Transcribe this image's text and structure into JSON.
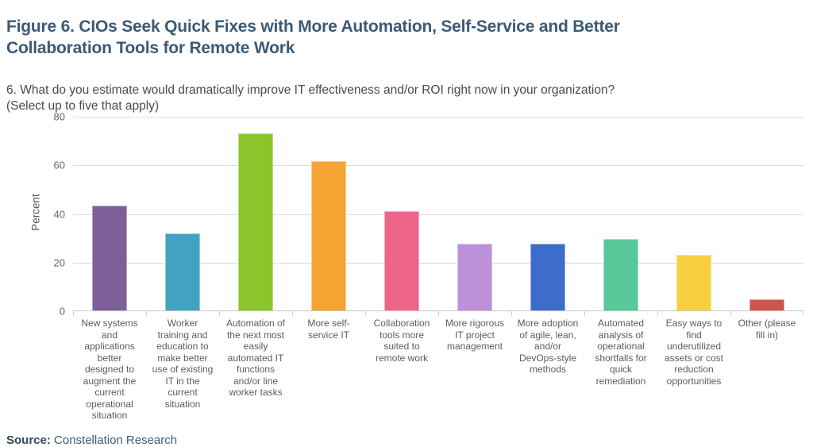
{
  "header": {
    "title": "Figure 6. CIOs Seek Quick Fixes with More Automation, Self-Service and Better\nCollaboration Tools for Remote Work",
    "question": "6. What do you estimate would dramatically improve IT effectiveness and/or ROI right now in your organization?\n(Select up to five that apply)"
  },
  "chart_data": {
    "type": "bar",
    "title": "",
    "xlabel": "",
    "ylabel": "Percent",
    "ylim": [
      0,
      80
    ],
    "yticks": [
      0,
      20,
      40,
      60,
      80
    ],
    "grid": "horizontal",
    "legend_position": "none",
    "categories": [
      "New systems\nand\napplications\nbetter\ndesigned to\naugment the\ncurrent\noperational\nsituation",
      "Worker\ntraining and\neducation to\nmake better\nuse of existing\nIT in the\ncurrent\nsituation",
      "Automation of\nthe next most\neasily\nautomated IT\nfunctions\nand/or line\nworker tasks",
      "More self-\nservice IT",
      "Collaboration\ntools more\nsuited to\nremote work",
      "More rigorous\nIT project\nmanagement",
      "More adoption\nof agile, lean,\nand/or\nDevOps-style\nmethods",
      "Automated\nanalysis of\noperational\nshortfalls for\nquick\nremediation",
      "Easy ways to\nfind\nunderutilized\nassets or cost\nreduction\nopportunities",
      "Other (please\nfill in)"
    ],
    "values": [
      43.2,
      31.8,
      72.7,
      61.4,
      40.9,
      27.3,
      27.3,
      29.5,
      22.7,
      4.5
    ],
    "bar_colors": [
      "#7C6097",
      "#41A2C2",
      "#8CC42B",
      "#F5A433",
      "#ED6588",
      "#BC91D9",
      "#3E6CCB",
      "#58C79A",
      "#F7CF41",
      "#D0534E"
    ]
  },
  "source": {
    "label": "Source:",
    "value": "Constellation Research"
  },
  "colors": {
    "title_text": "#3A5A77",
    "question_text": "#4A4A4A",
    "axis_text": "#666666",
    "y_axis_title_text": "#555555",
    "category_text": "#5C5C5C",
    "gridline": "#DCDCDC",
    "axis_line": "#C6C6C6",
    "tick_mark": "#C9D0E8",
    "source_label_text": "#33485C",
    "source_value_text": "#3E5C78",
    "background": "#FFFFFF"
  }
}
